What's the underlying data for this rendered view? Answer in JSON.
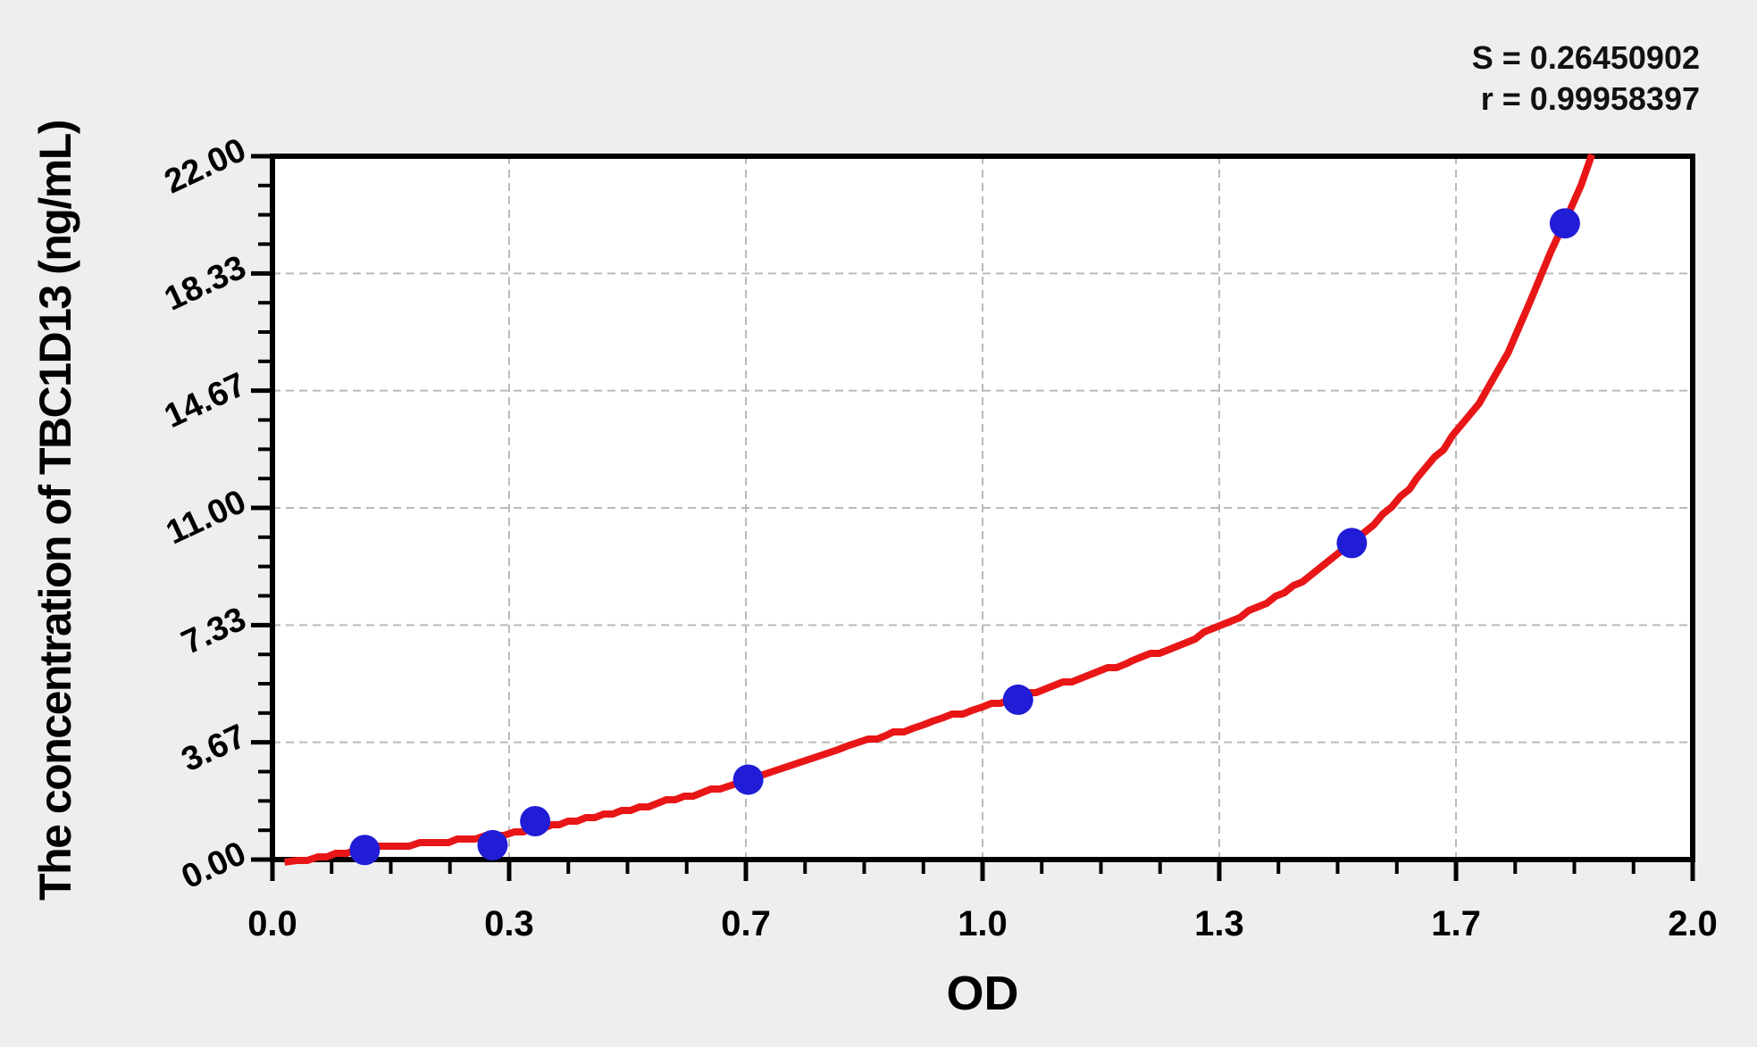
{
  "page": {
    "background": "#eeeeee"
  },
  "stats": {
    "s_line": "S = 0.26450902",
    "r_line": "r = 0.99958397"
  },
  "chart_data": {
    "type": "scatter",
    "title": "",
    "xlabel": "OD",
    "ylabel": "The concentration of TBC1D13 (ng/mL)",
    "xlim": [
      0,
      2.0
    ],
    "ylim": [
      0,
      22.0
    ],
    "grid": true,
    "legend_position": "none",
    "annotations": {
      "S": "0.26450902",
      "r": "0.99958397"
    },
    "x_ticks": {
      "values": [
        0,
        0.3333,
        0.6667,
        1.0,
        1.3333,
        1.6667,
        2.0
      ],
      "labels": [
        "0.0",
        "0.3",
        "0.7",
        "1.0",
        "1.3",
        "1.7",
        "2.0"
      ],
      "minor_divisions": 4
    },
    "y_ticks": {
      "values": [
        0,
        3.6667,
        7.3333,
        11.0,
        14.6667,
        18.3333,
        22.0
      ],
      "labels": [
        "0.00",
        "3.67",
        "7.33",
        "11.00",
        "14.67",
        "18.33",
        "22.00"
      ],
      "minor_divisions": 4
    },
    "series": [
      {
        "name": "standard-points",
        "type": "scatter",
        "color": "#211cd6",
        "marker_radius_px": 17,
        "points": [
          [
            0.13,
            0.3
          ],
          [
            0.31,
            0.45
          ],
          [
            0.37,
            1.2
          ],
          [
            0.67,
            2.5
          ],
          [
            1.05,
            5.0
          ],
          [
            1.52,
            9.9
          ],
          [
            1.82,
            19.9
          ]
        ]
      },
      {
        "name": "fitted-curve",
        "type": "line",
        "color": "#e81616",
        "points": [
          [
            0.017,
            -0.08
          ],
          [
            0.05,
            0.02
          ],
          [
            0.09,
            0.17
          ],
          [
            0.135,
            0.33
          ],
          [
            0.18,
            0.44
          ],
          [
            0.22,
            0.52
          ],
          [
            0.26,
            0.61
          ],
          [
            0.3,
            0.72
          ],
          [
            0.34,
            0.84
          ],
          [
            0.38,
            0.98
          ],
          [
            0.43,
            1.2
          ],
          [
            0.48,
            1.45
          ],
          [
            0.53,
            1.7
          ],
          [
            0.58,
            1.97
          ],
          [
            0.63,
            2.23
          ],
          [
            0.674,
            2.5
          ],
          [
            0.72,
            2.82
          ],
          [
            0.78,
            3.28
          ],
          [
            0.84,
            3.72
          ],
          [
            0.875,
            3.95
          ],
          [
            0.93,
            4.32
          ],
          [
            1.0,
            4.78
          ],
          [
            1.05,
            5.08
          ],
          [
            1.1,
            5.42
          ],
          [
            1.15,
            5.78
          ],
          [
            1.2,
            6.12
          ],
          [
            1.25,
            6.5
          ],
          [
            1.3,
            6.95
          ],
          [
            1.35,
            7.45
          ],
          [
            1.4,
            8.02
          ],
          [
            1.45,
            8.72
          ],
          [
            1.5,
            9.55
          ],
          [
            1.55,
            10.5
          ],
          [
            1.6,
            11.62
          ],
          [
            1.65,
            12.85
          ],
          [
            1.7,
            14.3
          ],
          [
            1.74,
            15.85
          ],
          [
            1.77,
            17.4
          ],
          [
            1.8,
            19.0
          ],
          [
            1.823,
            20.1
          ],
          [
            1.843,
            21.1
          ],
          [
            1.858,
            22.05
          ]
        ]
      }
    ],
    "colors": {
      "plot_background": "#ffffff",
      "axis": "#000000",
      "grid": "#bababa"
    }
  }
}
